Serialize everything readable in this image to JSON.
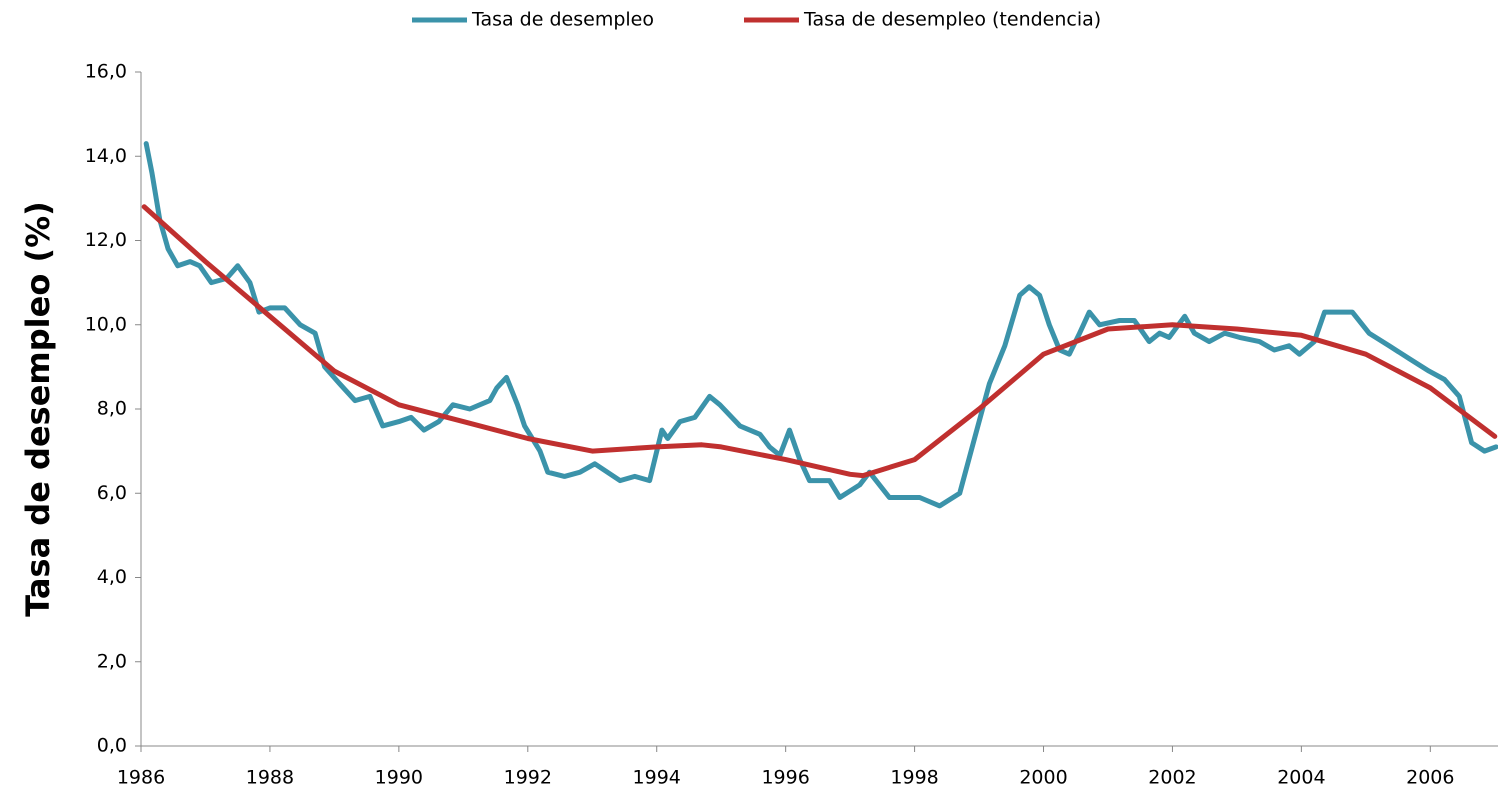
{
  "chart_data": {
    "type": "line",
    "y_label": "Tasa de desempleo (%)",
    "xlim": [
      1986,
      2007.05
    ],
    "xticks": [
      1986,
      1988,
      1990,
      1992,
      1994,
      1996,
      1998,
      2000,
      2002,
      2004,
      2006
    ],
    "ylim": [
      0,
      16
    ],
    "yticks": [
      {
        "value": 0,
        "label": "0,0"
      },
      {
        "value": 2,
        "label": "2,0"
      },
      {
        "value": 4,
        "label": "4,0"
      },
      {
        "value": 6,
        "label": "6,0"
      },
      {
        "value": 8,
        "label": "8,0"
      },
      {
        "value": 10,
        "label": "10,0"
      },
      {
        "value": 12,
        "label": "12,0"
      },
      {
        "value": 14,
        "label": "14,0"
      },
      {
        "value": 16,
        "label": "16,0"
      }
    ],
    "legend": "top",
    "series": [
      {
        "name": "Tasa de desempleo",
        "color": "#3b93aa",
        "x": [
          1986.08,
          1986.17,
          1986.29,
          1986.42,
          1986.57,
          1986.76,
          1986.91,
          1987.09,
          1987.33,
          1987.5,
          1987.69,
          1987.83,
          1988.0,
          1988.23,
          1988.47,
          1988.7,
          1988.85,
          1989.08,
          1989.32,
          1989.55,
          1989.75,
          1990.0,
          1990.19,
          1990.39,
          1990.62,
          1990.84,
          1991.1,
          1991.41,
          1991.52,
          1991.67,
          1991.84,
          1991.95,
          1992.19,
          1992.31,
          1992.57,
          1992.81,
          1993.04,
          1993.43,
          1993.66,
          1993.89,
          1994.08,
          1994.17,
          1994.36,
          1994.59,
          1994.82,
          1994.98,
          1995.29,
          1995.6,
          1995.75,
          1995.91,
          1996.06,
          1996.22,
          1996.37,
          1996.68,
          1996.84,
          1997.15,
          1997.3,
          1997.61,
          1998.08,
          1998.39,
          1998.7,
          1998.93,
          1999.16,
          1999.4,
          1999.63,
          1999.78,
          1999.94,
          2000.09,
          2000.25,
          2000.4,
          2000.56,
          2000.71,
          2000.87,
          2001.18,
          2001.41,
          2001.64,
          2001.8,
          2001.95,
          2002.19,
          2002.34,
          2002.57,
          2002.81,
          2003.04,
          2003.35,
          2003.58,
          2003.81,
          2003.97,
          2004.2,
          2004.36,
          2004.59,
          2004.79,
          2005.05,
          2005.36,
          2005.67,
          2005.98,
          2006.22,
          2006.45,
          2006.64,
          2006.84,
          2007.02
        ],
        "values": [
          14.3,
          13.6,
          12.5,
          11.8,
          11.4,
          11.5,
          11.4,
          11.0,
          11.1,
          11.4,
          11.0,
          10.3,
          10.4,
          10.4,
          10.0,
          9.8,
          9.0,
          8.6,
          8.2,
          8.3,
          7.6,
          7.7,
          7.8,
          7.5,
          7.7,
          8.1,
          8.0,
          8.2,
          8.5,
          8.75,
          8.1,
          7.6,
          7.0,
          6.5,
          6.4,
          6.5,
          6.7,
          6.3,
          6.4,
          6.3,
          7.5,
          7.3,
          7.7,
          7.8,
          8.3,
          8.1,
          7.6,
          7.4,
          7.1,
          6.9,
          7.5,
          6.8,
          6.3,
          6.3,
          5.9,
          6.2,
          6.5,
          5.9,
          5.9,
          5.7,
          6.0,
          7.3,
          8.6,
          9.5,
          10.7,
          10.9,
          10.7,
          10.0,
          9.4,
          9.3,
          9.8,
          10.3,
          10.0,
          10.1,
          10.1,
          9.6,
          9.8,
          9.7,
          10.2,
          9.8,
          9.6,
          9.8,
          9.7,
          9.6,
          9.4,
          9.5,
          9.3,
          9.6,
          10.3,
          10.3,
          10.3,
          9.8,
          9.5,
          9.2,
          8.9,
          8.7,
          8.3,
          7.2,
          7.0,
          7.1
        ]
      },
      {
        "name": "Tasa de desempleo (tendencia)",
        "color": "#c0302f",
        "x": [
          1986.05,
          1987,
          1988,
          1989,
          1990,
          1991,
          1992,
          1993,
          1994,
          1994.7,
          1995,
          1996,
          1997,
          1997.2,
          1998,
          1999,
          2000,
          2001,
          2002,
          2003,
          2004,
          2005,
          2006,
          2007
        ],
        "values": [
          12.8,
          11.5,
          10.2,
          8.9,
          8.1,
          7.7,
          7.3,
          7.0,
          7.1,
          7.15,
          7.1,
          6.8,
          6.45,
          6.42,
          6.8,
          8.0,
          9.3,
          9.9,
          10.0,
          9.9,
          9.75,
          9.3,
          8.5,
          7.35
        ]
      }
    ]
  }
}
